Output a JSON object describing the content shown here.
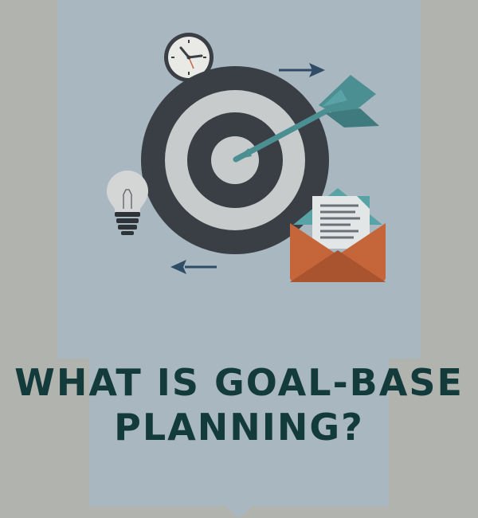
{
  "headline": {
    "line1": "WHAT IS GOAL-BASE",
    "line2": "PLANNING?"
  },
  "colors": {
    "background": "#b1b3ae",
    "panel": "#a9b7c1",
    "target_dark": "#3a3f45",
    "target_light": "#c7cbcc",
    "dart": "#4c8f92",
    "envelope": "#c4653a",
    "headline": "#143b3c"
  },
  "icons": [
    "clock-icon",
    "target-icon",
    "dart-icon",
    "arrow-right-icon",
    "arrow-left-icon",
    "lightbulb-icon",
    "envelope-icon"
  ]
}
